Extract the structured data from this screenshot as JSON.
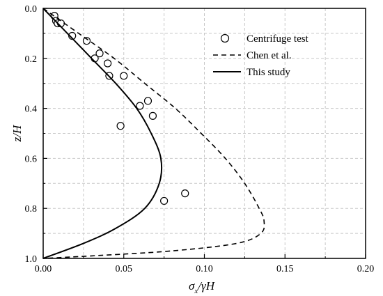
{
  "chart_data": {
    "type": "scatter",
    "xlabel": "σx/γH",
    "ylabel": "z/H",
    "xlim": [
      0,
      0.2
    ],
    "ylim": [
      0,
      1.0
    ],
    "y_inverted": true,
    "x_axis_position": "top-of-plot-is-y0",
    "grid": true,
    "legend_position": "top-right",
    "x_ticks": [
      "0.00",
      "0.05",
      "0.10",
      "0.15",
      "0.20"
    ],
    "y_ticks": [
      "0.0",
      "0.2",
      "0.4",
      "0.6",
      "0.8",
      "1.0"
    ],
    "series": [
      {
        "name": "Centrifuge test",
        "style": "open-circle",
        "points": [
          {
            "x": 0.007,
            "y": 0.03
          },
          {
            "x": 0.008,
            "y": 0.05
          },
          {
            "x": 0.009,
            "y": 0.06
          },
          {
            "x": 0.011,
            "y": 0.06
          },
          {
            "x": 0.018,
            "y": 0.11
          },
          {
            "x": 0.027,
            "y": 0.13
          },
          {
            "x": 0.035,
            "y": 0.18
          },
          {
            "x": 0.032,
            "y": 0.2
          },
          {
            "x": 0.04,
            "y": 0.22
          },
          {
            "x": 0.041,
            "y": 0.27
          },
          {
            "x": 0.05,
            "y": 0.27
          },
          {
            "x": 0.065,
            "y": 0.37
          },
          {
            "x": 0.06,
            "y": 0.39
          },
          {
            "x": 0.068,
            "y": 0.43
          },
          {
            "x": 0.048,
            "y": 0.47
          },
          {
            "x": 0.088,
            "y": 0.74
          },
          {
            "x": 0.075,
            "y": 0.77
          }
        ]
      },
      {
        "name": "Chen et al.",
        "style": "dashed",
        "points": [
          {
            "x": 0.0,
            "y": 0.0
          },
          {
            "x": 0.022,
            "y": 0.1
          },
          {
            "x": 0.044,
            "y": 0.2
          },
          {
            "x": 0.063,
            "y": 0.3
          },
          {
            "x": 0.082,
            "y": 0.4
          },
          {
            "x": 0.098,
            "y": 0.5
          },
          {
            "x": 0.113,
            "y": 0.6
          },
          {
            "x": 0.125,
            "y": 0.7
          },
          {
            "x": 0.134,
            "y": 0.8
          },
          {
            "x": 0.137,
            "y": 0.85
          },
          {
            "x": 0.135,
            "y": 0.9
          },
          {
            "x": 0.12,
            "y": 0.94
          },
          {
            "x": 0.08,
            "y": 0.97
          },
          {
            "x": 0.03,
            "y": 0.99
          },
          {
            "x": 0.0,
            "y": 1.0
          }
        ]
      },
      {
        "name": "This study",
        "style": "solid",
        "points": [
          {
            "x": 0.0,
            "y": 0.0
          },
          {
            "x": 0.015,
            "y": 0.1
          },
          {
            "x": 0.03,
            "y": 0.2
          },
          {
            "x": 0.045,
            "y": 0.3
          },
          {
            "x": 0.058,
            "y": 0.4
          },
          {
            "x": 0.067,
            "y": 0.5
          },
          {
            "x": 0.073,
            "y": 0.6
          },
          {
            "x": 0.072,
            "y": 0.7
          },
          {
            "x": 0.063,
            "y": 0.8
          },
          {
            "x": 0.045,
            "y": 0.88
          },
          {
            "x": 0.025,
            "y": 0.94
          },
          {
            "x": 0.0,
            "y": 1.0
          }
        ]
      }
    ],
    "colors": {
      "line": "#000000",
      "grid": "#c8c8c8",
      "background": "#ffffff"
    }
  }
}
